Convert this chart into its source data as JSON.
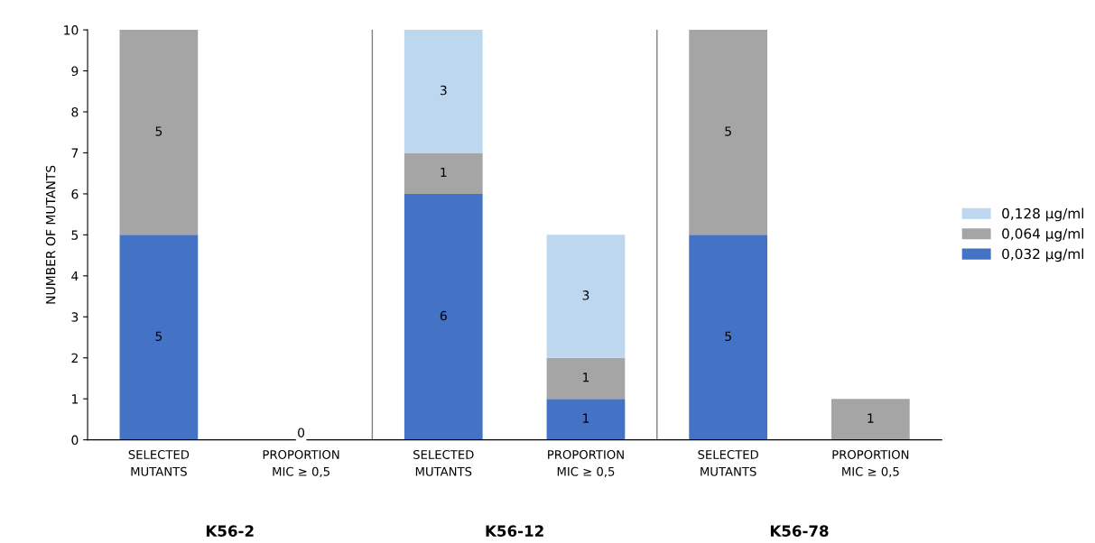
{
  "chart_data": {
    "type": "bar",
    "stacked": true,
    "ylabel": "NUMBER OF MUTANTS",
    "categories": [
      "SELECTED\nMUTANTS",
      "PROPORTION\nMIC ≥ 0,5",
      "SELECTED\nMUTANTS",
      "PROPORTION\nMIC ≥ 0,5",
      "SELECTED\nMUTANTS",
      "PROPORTION\nMIC ≥ 0,5"
    ],
    "series": [
      {
        "name": "0,032 µg/ml",
        "color": "#4472c4",
        "values": [
          5,
          0,
          6,
          1,
          5,
          0
        ],
        "value_labels": [
          "5",
          "0",
          "6",
          "1",
          "5",
          null
        ]
      },
      {
        "name": "0,064 µg/ml",
        "color": "#a5a5a5",
        "values": [
          5,
          0,
          1,
          1,
          5,
          1
        ],
        "value_labels": [
          "5",
          null,
          "1",
          "1",
          "5",
          "1"
        ]
      },
      {
        "name": "0,128 µg/ml",
        "color": "#bdd7ee",
        "values": [
          0,
          0,
          3,
          3,
          0,
          0
        ],
        "value_labels": [
          null,
          null,
          "3",
          "3",
          null,
          null
        ]
      }
    ],
    "ylim": [
      0,
      10
    ],
    "yticks": [
      0,
      1,
      2,
      3,
      4,
      5,
      6,
      7,
      8,
      9,
      10
    ],
    "annotations": [
      "K56-2",
      "K56-12",
      "K56-78"
    ],
    "grid": false,
    "legend": "right"
  }
}
